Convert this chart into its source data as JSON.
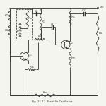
{
  "bg_color": "#f5f5f0",
  "line_color": "#333333",
  "lw": 0.6,
  "figsize": [
    1.5,
    1.5
  ],
  "dpi": 100,
  "xlim": [
    0,
    10
  ],
  "ylim": [
    0,
    10
  ],
  "caption": "Fig. 21.12 Franklin Oscillator"
}
